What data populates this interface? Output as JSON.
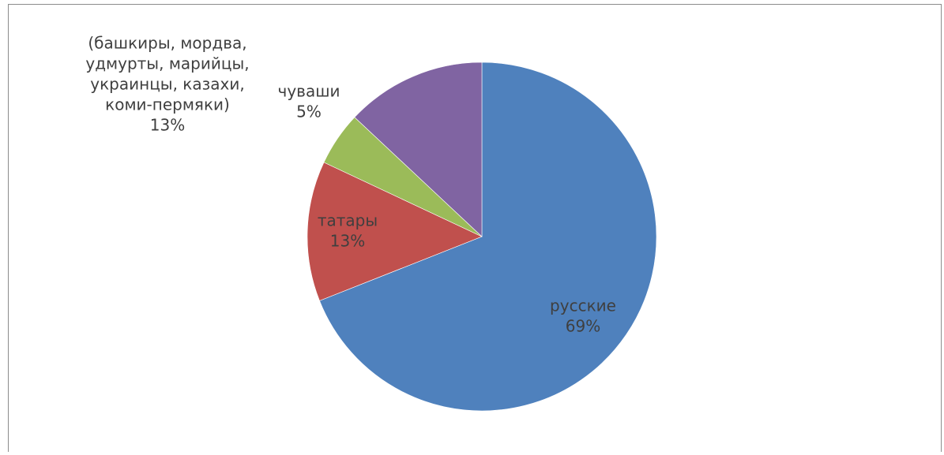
{
  "chart_data": {
    "type": "pie",
    "title": "",
    "start_angle_deg": 0,
    "direction": "clockwise",
    "legend": "none",
    "slices": [
      {
        "key": "russians",
        "label_lines": [
          "русские",
          "69%"
        ],
        "value": 69,
        "color": "#4f81bd"
      },
      {
        "key": "tatars",
        "label_lines": [
          "татары",
          "13%"
        ],
        "value": 13,
        "color": "#c0504d"
      },
      {
        "key": "chuvash",
        "label_lines": [
          "чуваши",
          "5%"
        ],
        "value": 5,
        "color": "#9bbb59"
      },
      {
        "key": "others",
        "label_lines": [
          "(башкиры, мордва,",
          "удмурты, марийцы,",
          "украинцы, казахи,",
          "коми-пермяки)",
          "13%"
        ],
        "value": 13,
        "color": "#8064a2"
      }
    ]
  }
}
